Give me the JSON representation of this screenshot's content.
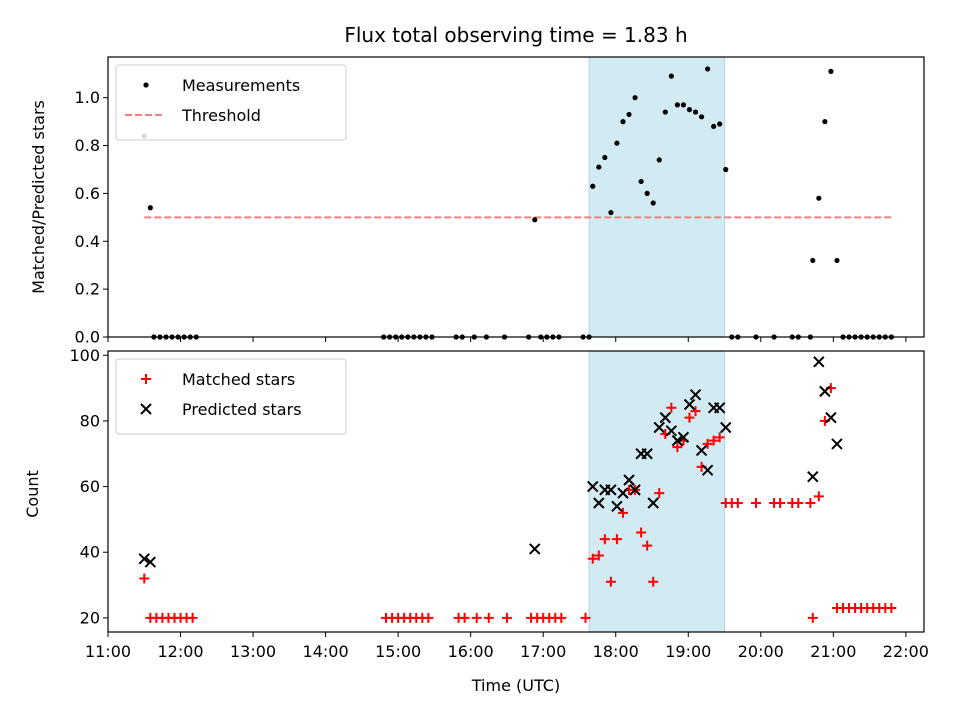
{
  "title": "Flux total observing time = 1.83 h",
  "xlabel": "Time (UTC)",
  "colors": {
    "measurement": "#000000",
    "threshold": "#f08080",
    "matched": "#ff0000",
    "predicted": "#000000",
    "span": "#add8e6"
  },
  "chart_data": [
    {
      "type": "scatter",
      "panel": "top",
      "ylabel": "Matched/Predicted stars",
      "xlim": [
        "11:00",
        "22:15"
      ],
      "ylim": [
        0,
        1.17
      ],
      "xticks": [
        "11:00",
        "12:00",
        "13:00",
        "14:00",
        "15:00",
        "16:00",
        "17:00",
        "18:00",
        "19:00",
        "20:00",
        "21:00",
        "22:00"
      ],
      "yticks": [
        "0.0",
        "0.2",
        "0.4",
        "0.6",
        "0.8",
        "1.0"
      ],
      "legend": "upper left",
      "shaded_span": [
        "17:38",
        "19:30"
      ],
      "threshold": {
        "name": "Threshold",
        "y": 0.5,
        "x": [
          "11:30",
          "21:48"
        ]
      },
      "series": [
        {
          "name": "Measurements",
          "marker": "dot",
          "points": [
            [
              "11:30",
              0.84
            ],
            [
              "11:35",
              0.54
            ],
            [
              "11:38",
              0
            ],
            [
              "11:43",
              0
            ],
            [
              "11:48",
              0
            ],
            [
              "11:53",
              0
            ],
            [
              "11:58",
              0
            ],
            [
              "12:03",
              0
            ],
            [
              "12:08",
              0
            ],
            [
              "12:13",
              0
            ],
            [
              "14:48",
              0
            ],
            [
              "14:53",
              0
            ],
            [
              "14:58",
              0
            ],
            [
              "15:03",
              0
            ],
            [
              "15:08",
              0
            ],
            [
              "15:13",
              0
            ],
            [
              "15:18",
              0
            ],
            [
              "15:23",
              0
            ],
            [
              "15:28",
              0
            ],
            [
              "15:48",
              0
            ],
            [
              "15:53",
              0
            ],
            [
              "16:03",
              0
            ],
            [
              "16:13",
              0
            ],
            [
              "16:28",
              0
            ],
            [
              "16:48",
              0
            ],
            [
              "16:53",
              0.49
            ],
            [
              "16:58",
              0
            ],
            [
              "17:03",
              0
            ],
            [
              "17:08",
              0
            ],
            [
              "17:13",
              0
            ],
            [
              "17:33",
              0
            ],
            [
              "17:38",
              0
            ],
            [
              "17:41",
              0.63
            ],
            [
              "17:46",
              0.71
            ],
            [
              "17:51",
              0.75
            ],
            [
              "17:56",
              0.52
            ],
            [
              "18:01",
              0.81
            ],
            [
              "18:06",
              0.9
            ],
            [
              "18:11",
              0.93
            ],
            [
              "18:16",
              1.0
            ],
            [
              "18:21",
              0.65
            ],
            [
              "18:26",
              0.6
            ],
            [
              "18:31",
              0.56
            ],
            [
              "18:36",
              0.74
            ],
            [
              "18:41",
              0.94
            ],
            [
              "18:46",
              1.09
            ],
            [
              "18:51",
              0.97
            ],
            [
              "18:56",
              0.97
            ],
            [
              "19:01",
              0.95
            ],
            [
              "19:06",
              0.94
            ],
            [
              "19:11",
              0.92
            ],
            [
              "19:16",
              1.12
            ],
            [
              "19:21",
              0.88
            ],
            [
              "19:26",
              0.89
            ],
            [
              "19:31",
              0.7
            ],
            [
              "19:36",
              0
            ],
            [
              "19:41",
              0
            ],
            [
              "19:56",
              0
            ],
            [
              "20:11",
              0
            ],
            [
              "20:26",
              0
            ],
            [
              "20:31",
              0
            ],
            [
              "20:41",
              0
            ],
            [
              "20:43",
              0.32
            ],
            [
              "20:48",
              0.58
            ],
            [
              "20:53",
              0.9
            ],
            [
              "20:58",
              1.11
            ],
            [
              "21:03",
              0.32
            ],
            [
              "21:08",
              0
            ],
            [
              "21:13",
              0
            ],
            [
              "21:18",
              0
            ],
            [
              "21:23",
              0
            ],
            [
              "21:28",
              0
            ],
            [
              "21:33",
              0
            ],
            [
              "21:38",
              0
            ],
            [
              "21:43",
              0
            ],
            [
              "21:48",
              0
            ]
          ]
        }
      ]
    },
    {
      "type": "scatter",
      "panel": "bottom",
      "ylabel": "Count",
      "xlim": [
        "11:00",
        "22:15"
      ],
      "ylim": [
        15.7,
        101.3
      ],
      "xticks": [
        "11:00",
        "12:00",
        "13:00",
        "14:00",
        "15:00",
        "16:00",
        "17:00",
        "18:00",
        "19:00",
        "20:00",
        "21:00",
        "22:00"
      ],
      "yticks": [
        "20",
        "40",
        "60",
        "80",
        "100"
      ],
      "legend": "upper left",
      "shaded_span": [
        "17:38",
        "19:30"
      ],
      "series": [
        {
          "name": "Matched stars",
          "marker": "plus",
          "points": [
            [
              "11:30",
              32
            ],
            [
              "11:35",
              20
            ],
            [
              "11:40",
              20
            ],
            [
              "11:45",
              20
            ],
            [
              "11:50",
              20
            ],
            [
              "11:55",
              20
            ],
            [
              "12:00",
              20
            ],
            [
              "12:05",
              20
            ],
            [
              "12:10",
              20
            ],
            [
              "14:50",
              20
            ],
            [
              "14:55",
              20
            ],
            [
              "15:00",
              20
            ],
            [
              "15:05",
              20
            ],
            [
              "15:10",
              20
            ],
            [
              "15:15",
              20
            ],
            [
              "15:20",
              20
            ],
            [
              "15:25",
              20
            ],
            [
              "15:50",
              20
            ],
            [
              "15:55",
              20
            ],
            [
              "16:05",
              20
            ],
            [
              "16:15",
              20
            ],
            [
              "16:30",
              20
            ],
            [
              "16:50",
              20
            ],
            [
              "16:55",
              20
            ],
            [
              "17:00",
              20
            ],
            [
              "17:05",
              20
            ],
            [
              "17:10",
              20
            ],
            [
              "17:15",
              20
            ],
            [
              "17:35",
              20
            ],
            [
              "17:41",
              38
            ],
            [
              "17:46",
              39
            ],
            [
              "17:51",
              44
            ],
            [
              "17:56",
              31
            ],
            [
              "18:01",
              44
            ],
            [
              "18:06",
              52
            ],
            [
              "18:11",
              59
            ],
            [
              "18:16",
              59
            ],
            [
              "18:21",
              46
            ],
            [
              "18:26",
              42
            ],
            [
              "18:31",
              31
            ],
            [
              "18:36",
              58
            ],
            [
              "18:41",
              76
            ],
            [
              "18:46",
              84
            ],
            [
              "18:51",
              72
            ],
            [
              "18:56",
              74
            ],
            [
              "19:01",
              81
            ],
            [
              "19:06",
              83
            ],
            [
              "19:11",
              66
            ],
            [
              "19:16",
              73
            ],
            [
              "19:21",
              74
            ],
            [
              "19:26",
              75
            ],
            [
              "19:31",
              55
            ],
            [
              "19:36",
              55
            ],
            [
              "19:41",
              55
            ],
            [
              "19:56",
              55
            ],
            [
              "20:11",
              55
            ],
            [
              "20:16",
              55
            ],
            [
              "20:26",
              55
            ],
            [
              "20:31",
              55
            ],
            [
              "20:41",
              55
            ],
            [
              "20:43",
              20
            ],
            [
              "20:48",
              57
            ],
            [
              "20:53",
              80
            ],
            [
              "20:58",
              90
            ],
            [
              "21:03",
              23
            ],
            [
              "21:08",
              23
            ],
            [
              "21:13",
              23
            ],
            [
              "21:18",
              23
            ],
            [
              "21:23",
              23
            ],
            [
              "21:28",
              23
            ],
            [
              "21:33",
              23
            ],
            [
              "21:38",
              23
            ],
            [
              "21:43",
              23
            ],
            [
              "21:48",
              23
            ]
          ]
        },
        {
          "name": "Predicted stars",
          "marker": "x",
          "points": [
            [
              "11:30",
              38
            ],
            [
              "11:35",
              37
            ],
            [
              "16:53",
              41
            ],
            [
              "17:41",
              60
            ],
            [
              "17:46",
              55
            ],
            [
              "17:51",
              59
            ],
            [
              "17:56",
              59
            ],
            [
              "18:01",
              54
            ],
            [
              "18:06",
              58
            ],
            [
              "18:11",
              62
            ],
            [
              "18:16",
              59
            ],
            [
              "18:21",
              70
            ],
            [
              "18:26",
              70
            ],
            [
              "18:31",
              55
            ],
            [
              "18:36",
              78
            ],
            [
              "18:41",
              81
            ],
            [
              "18:46",
              77
            ],
            [
              "18:51",
              74
            ],
            [
              "18:56",
              75
            ],
            [
              "19:01",
              85
            ],
            [
              "19:06",
              88
            ],
            [
              "19:11",
              71
            ],
            [
              "19:16",
              65
            ],
            [
              "19:21",
              84
            ],
            [
              "19:26",
              84
            ],
            [
              "19:31",
              78
            ],
            [
              "20:43",
              63
            ],
            [
              "20:48",
              98
            ],
            [
              "20:53",
              89
            ],
            [
              "20:58",
              81
            ],
            [
              "21:03",
              73
            ]
          ]
        }
      ]
    }
  ]
}
